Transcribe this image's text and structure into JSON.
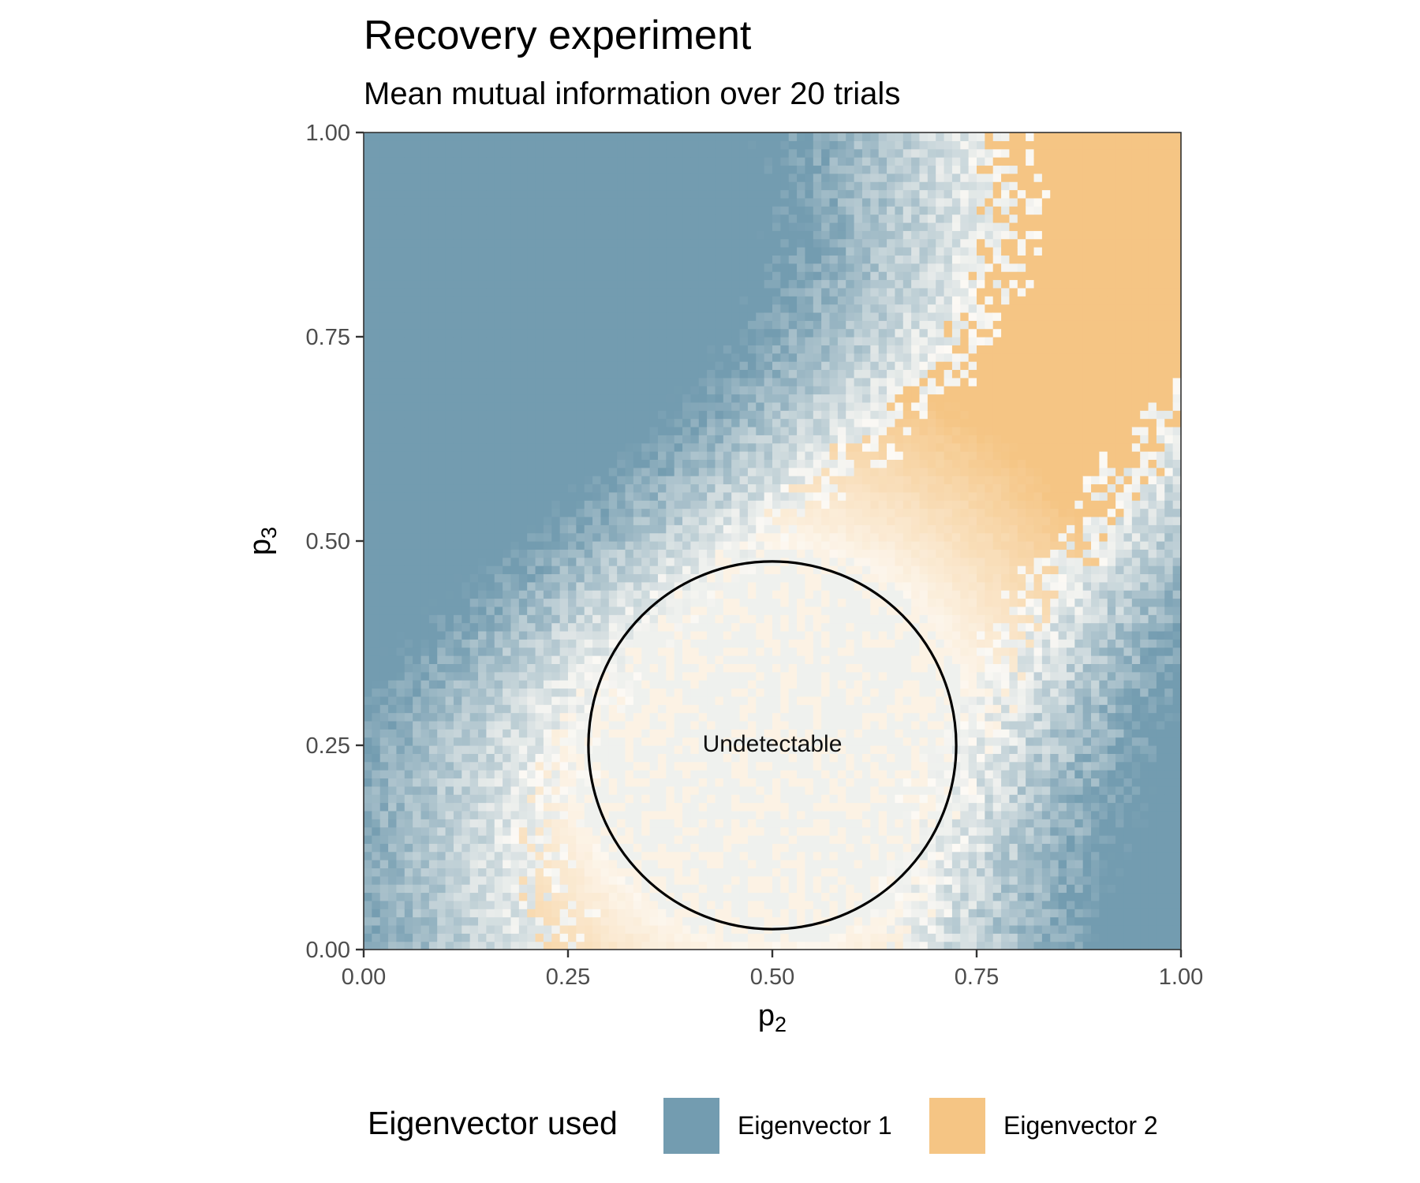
{
  "chart_data": {
    "type": "heatmap",
    "title": "Recovery experiment",
    "subtitle": "Mean mutual information over 20 trials",
    "xlabel": {
      "main": "p",
      "sub": "2"
    },
    "ylabel": {
      "main": "p",
      "sub": "3"
    },
    "xlim": [
      0,
      1
    ],
    "ylim": [
      0,
      1
    ],
    "x_ticks": [
      "0.00",
      "0.25",
      "0.50",
      "0.75",
      "1.00"
    ],
    "y_ticks": [
      "0.00",
      "0.25",
      "0.50",
      "0.75",
      "1.00"
    ],
    "tick_values": [
      0,
      0.25,
      0.5,
      0.75,
      1
    ],
    "grid": false,
    "grid_resolution": 100,
    "legend": {
      "title": "Eigenvector used",
      "placement": "bottom",
      "entries": [
        {
          "label": "Eigenvector 1",
          "color": "#739cb0"
        },
        {
          "label": "Eigenvector 2",
          "color": "#f5c584"
        }
      ]
    },
    "annotation": {
      "text": "Undetectable",
      "circle_center": [
        0.5,
        0.25
      ],
      "circle_radius": 0.225
    },
    "colors": {
      "eigenvector_1": "#739cb0",
      "eigenvector_2": "#f5c584",
      "low_information": "#fdfaf5"
    }
  }
}
